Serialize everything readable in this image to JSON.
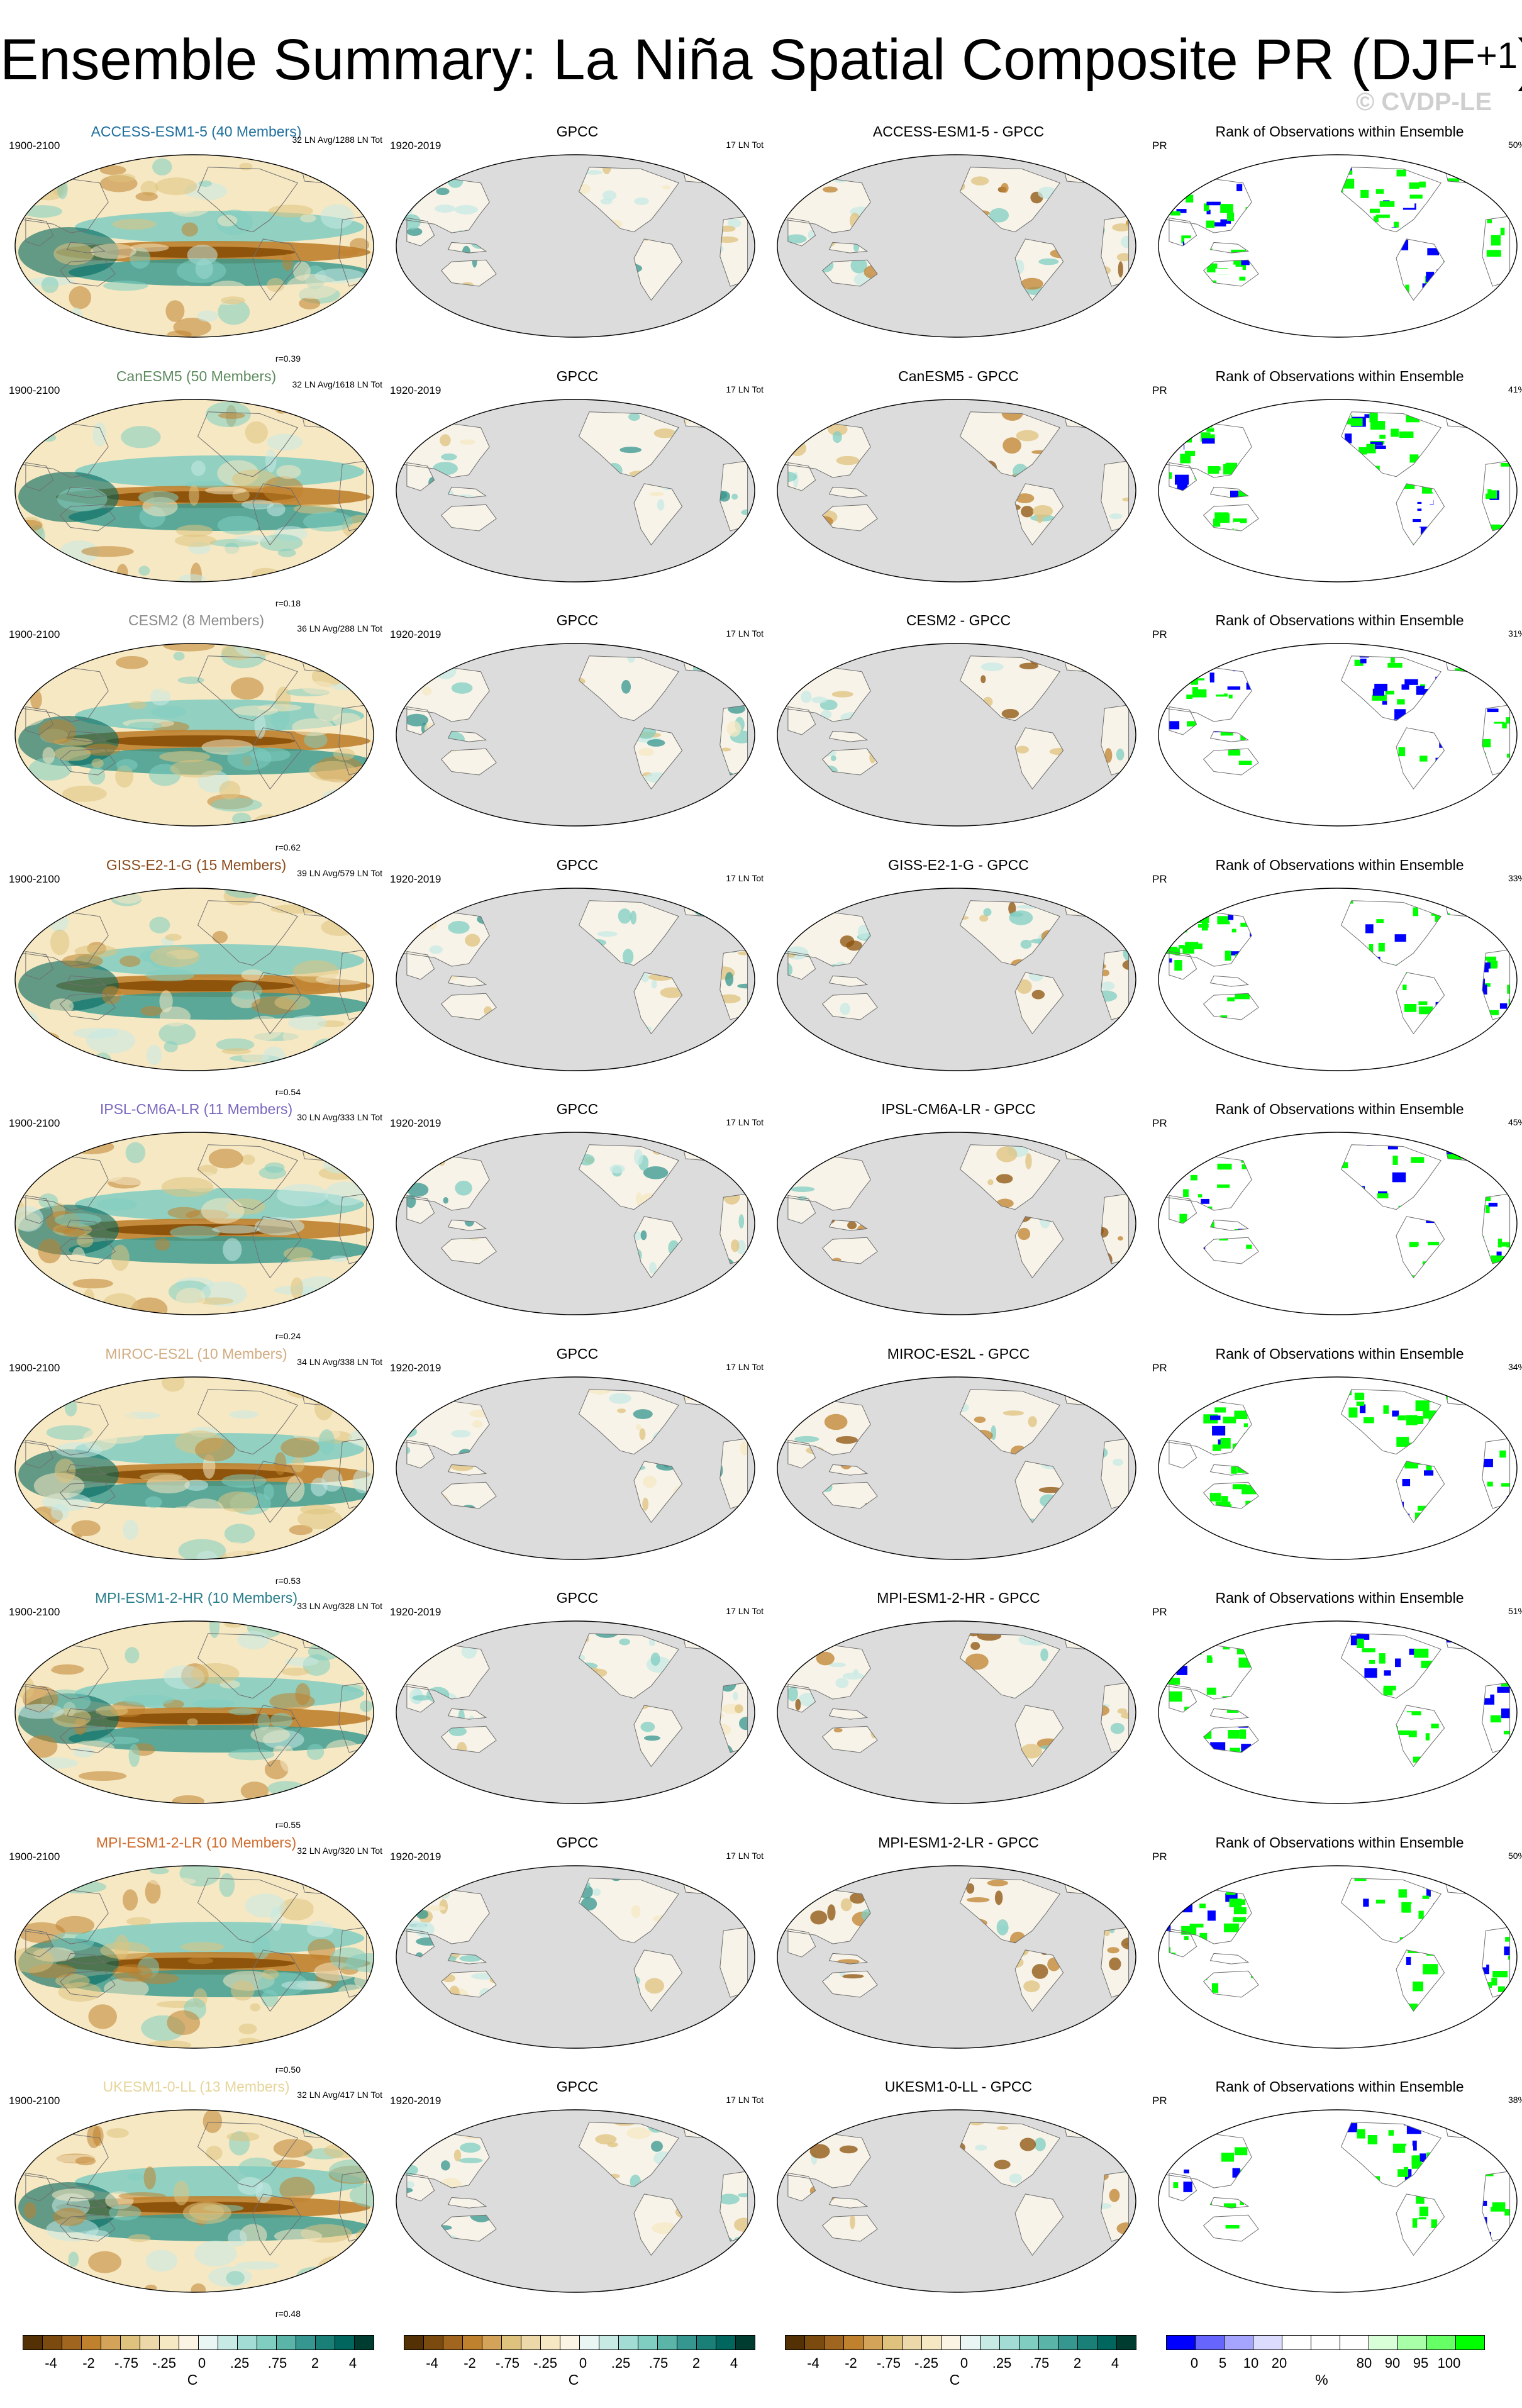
{
  "title": {
    "main": "Ensemble Summary: La Niña Spatial Composite PR (DJF",
    "sup": "+1",
    "close": ")"
  },
  "copyright": "© CVDP-LE",
  "colors": {
    "brown_dark": "#543005",
    "brown": "#8c510a",
    "tan": "#bf812d",
    "tan_light": "#dfc27d",
    "cream": "#f6e8c3",
    "teal_pale": "#c7eae5",
    "teal_light": "#80cdc1",
    "teal": "#35978f",
    "teal_dark": "#01665e",
    "teal_deep": "#003c30",
    "rank_blue": "#0000ff",
    "rank_green": "#00ff00",
    "land_gray": "#dcdcdc"
  },
  "column_headers": {
    "obs": "GPCC",
    "rank": "Rank of Observations within Ensemble"
  },
  "rows": [
    {
      "model": "ACCESS-ESM1-5 (40 Members)",
      "model_color": "#1f6f9e",
      "years": "1900-2100",
      "count": "32 LN Avg/1288 LN Tot",
      "corr": "r=0.39",
      "obs_years": "1920-2019",
      "obs_count": "17 LN Tot",
      "diff_title": "ACCESS-ESM1-5 - GPCC",
      "rank_var": "PR",
      "rank_pct": "50%"
    },
    {
      "model": "CanESM5 (50 Members)",
      "model_color": "#5d8a5e",
      "years": "1900-2100",
      "count": "32 LN Avg/1618 LN Tot",
      "corr": "r=0.18",
      "obs_years": "1920-2019",
      "obs_count": "17 LN Tot",
      "diff_title": "CanESM5 - GPCC",
      "rank_var": "PR",
      "rank_pct": "41%"
    },
    {
      "model": "CESM2 (8 Members)",
      "model_color": "#8a8a8a",
      "years": "1900-2100",
      "count": "36 LN Avg/288 LN Tot",
      "corr": "r=0.62",
      "obs_years": "1920-2019",
      "obs_count": "17 LN Tot",
      "diff_title": "CESM2 - GPCC",
      "rank_var": "PR",
      "rank_pct": "31%"
    },
    {
      "model": "GISS-E2-1-G (15 Members)",
      "model_color": "#8a4a1a",
      "years": "1900-2100",
      "count": "39 LN Avg/579 LN Tot",
      "corr": "r=0.54",
      "obs_years": "1920-2019",
      "obs_count": "17 LN Tot",
      "diff_title": "GISS-E2-1-G - GPCC",
      "rank_var": "PR",
      "rank_pct": "33%"
    },
    {
      "model": "IPSL-CM6A-LR (11 Members)",
      "model_color": "#7a68c0",
      "years": "1900-2100",
      "count": "30 LN Avg/333 LN Tot",
      "corr": "r=0.24",
      "obs_years": "1920-2019",
      "obs_count": "17 LN Tot",
      "diff_title": "IPSL-CM6A-LR - GPCC",
      "rank_var": "PR",
      "rank_pct": "45%"
    },
    {
      "model": "MIROC-ES2L (10 Members)",
      "model_color": "#d2ad83",
      "years": "1900-2100",
      "count": "34 LN Avg/338 LN Tot",
      "corr": "r=0.53",
      "obs_years": "1920-2019",
      "obs_count": "17 LN Tot",
      "diff_title": "MIROC-ES2L - GPCC",
      "rank_var": "PR",
      "rank_pct": "34%"
    },
    {
      "model": "MPI-ESM1-2-HR (10 Members)",
      "model_color": "#2c7f8c",
      "years": "1900-2100",
      "count": "33 LN Avg/328 LN Tot",
      "corr": "r=0.55",
      "obs_years": "1920-2019",
      "obs_count": "17 LN Tot",
      "diff_title": "MPI-ESM1-2-HR - GPCC",
      "rank_var": "PR",
      "rank_pct": "51%"
    },
    {
      "model": "MPI-ESM1-2-LR (10 Members)",
      "model_color": "#d06a2a",
      "years": "1900-2100",
      "count": "32 LN Avg/320 LN Tot",
      "corr": "r=0.50",
      "obs_years": "1920-2019",
      "obs_count": "17 LN Tot",
      "diff_title": "MPI-ESM1-2-LR - GPCC",
      "rank_var": "PR",
      "rank_pct": "50%"
    },
    {
      "model": "UKESM1-0-LL (13 Members)",
      "model_color": "#e6d59a",
      "years": "1900-2100",
      "count": "32 LN Avg/417 LN Tot",
      "corr": "r=0.48",
      "obs_years": "1920-2019",
      "obs_count": "17 LN Tot",
      "diff_title": "UKESM1-0-LL - GPCC",
      "rank_var": "PR",
      "rank_pct": "38%"
    }
  ],
  "colorbars": {
    "anomaly": {
      "unit": "C",
      "ticks": [
        "-4",
        "-2",
        "-.75",
        "-.25",
        "0",
        ".25",
        ".75",
        "2",
        "4"
      ],
      "fills": [
        "#543005",
        "#7a4a0f",
        "#a0661f",
        "#bf812d",
        "#d4a35a",
        "#dfc27d",
        "#ecd8a8",
        "#f6e8c3",
        "#fbf4e4",
        "#e9f6f4",
        "#c7eae5",
        "#a3dcd4",
        "#80cdc1",
        "#5ab4a8",
        "#35978f",
        "#1a7f77",
        "#01665e",
        "#003c30"
      ]
    },
    "rank": {
      "unit": "%",
      "ticks": [
        "0",
        "5",
        "10",
        "20",
        "80",
        "90",
        "95",
        "100"
      ],
      "fills": [
        "#0000ff",
        "#6666ff",
        "#a5a5ff",
        "#dcdcff",
        "#ffffff",
        "#ffffff",
        "#ffffff",
        "#d8ffd8",
        "#a8ffa8",
        "#66ff66",
        "#00ff00"
      ]
    }
  }
}
